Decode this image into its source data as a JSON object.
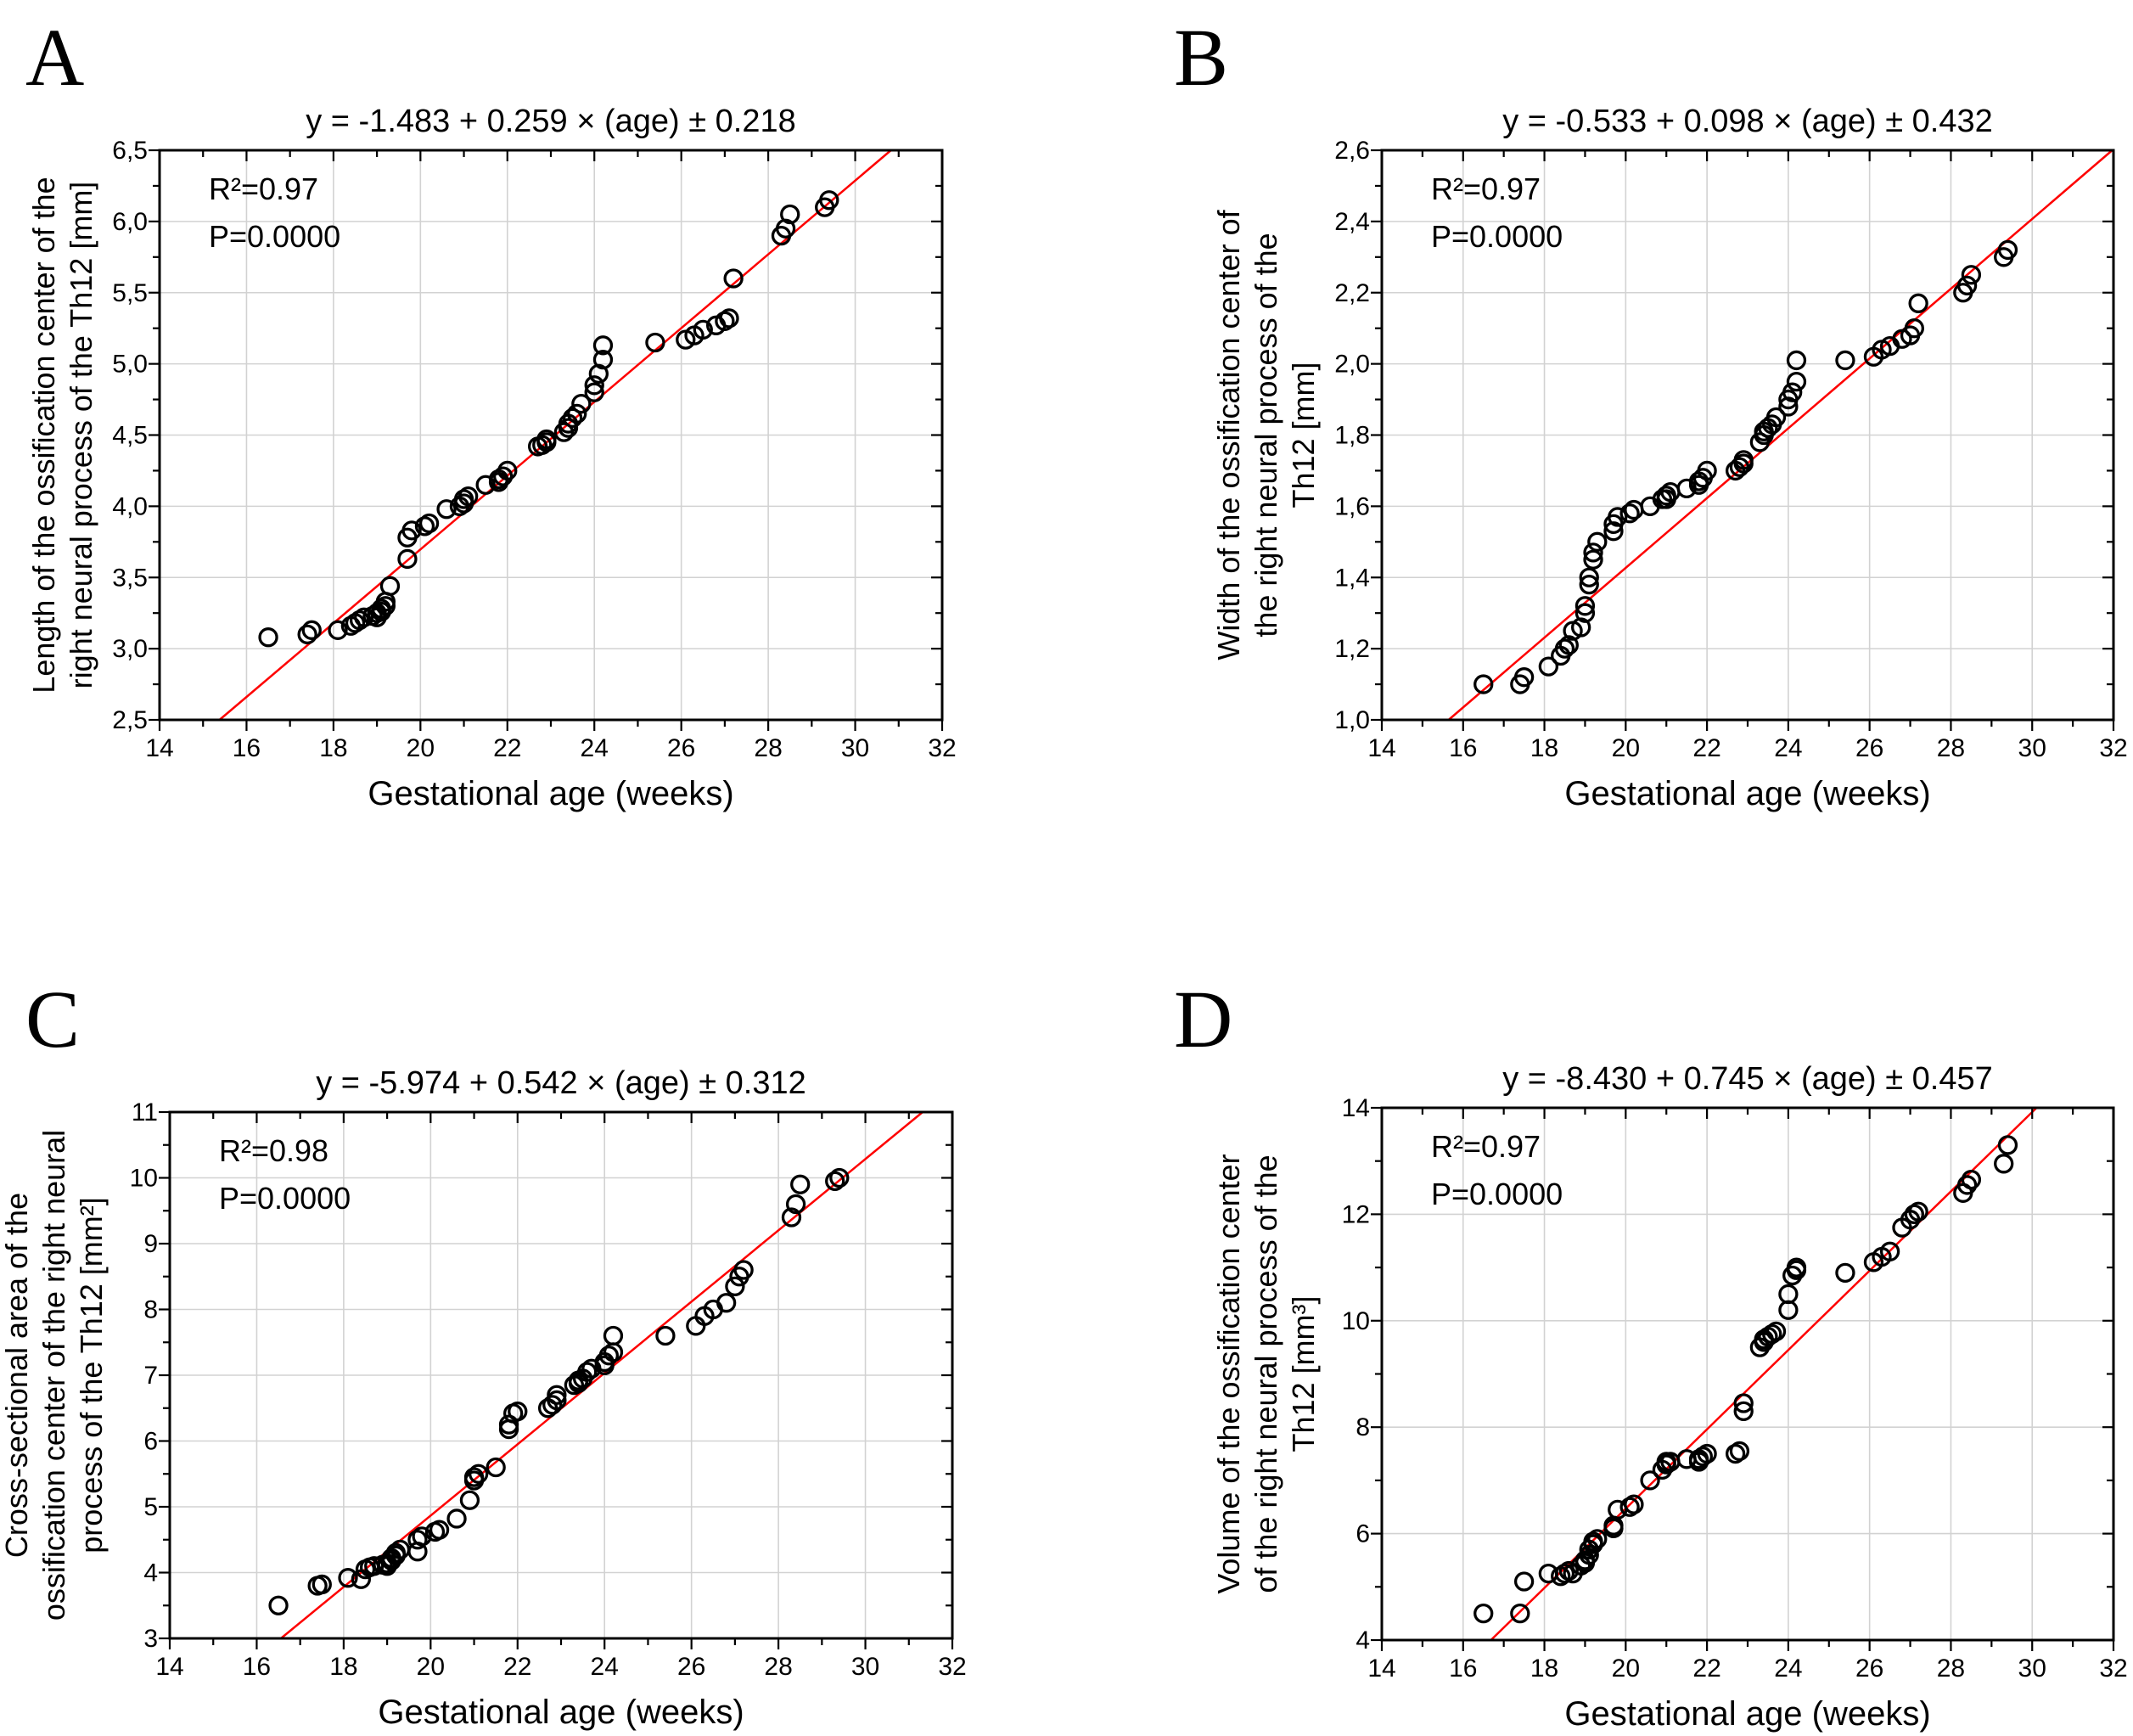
{
  "figure": {
    "background_color": "#ffffff",
    "trend_color": "#fe0000",
    "grid_color": "#d2d2d2",
    "marker_color": "#000000"
  },
  "chart_data": [
    {
      "id": "A",
      "panel_letter": "A",
      "type": "scatter",
      "title": "y = -1.483 + 0.259 × (age) ± 0.218",
      "equation": {
        "intercept": -1.483,
        "slope": 0.259,
        "sd": 0.218
      },
      "stats": {
        "r2": "R²=0.97",
        "p": "P=0.0000"
      },
      "r_squared": 0.97,
      "p_value": 0.0,
      "xlabel": "Gestational age (weeks)",
      "ylabel_lines": [
        "Length of the ossification center of the",
        "right neural process of the Th12 [mm]"
      ],
      "xlim": [
        14,
        32
      ],
      "ylim": [
        2.5,
        6.5
      ],
      "xticks": [
        14,
        16,
        18,
        20,
        22,
        24,
        26,
        28,
        30,
        32
      ],
      "xtick_labels": [
        "14",
        "16",
        "18",
        "20",
        "22",
        "24",
        "26",
        "28",
        "30",
        "32"
      ],
      "yticks": [
        2.5,
        3.0,
        3.5,
        4.0,
        4.5,
        5.0,
        5.5,
        6.0,
        6.5
      ],
      "ytick_labels": [
        "2,5",
        "3,0",
        "3,5",
        "4,0",
        "4,5",
        "5,0",
        "5,5",
        "6,0",
        "6,5"
      ],
      "x_minor_step": 1,
      "y_minor_step": 0.25,
      "grid": true,
      "legend_position": "none",
      "x": [
        16.5,
        17.4,
        17.5,
        18.1,
        18.4,
        18.5,
        18.6,
        18.7,
        18.9,
        19.0,
        19.0,
        19.1,
        19.1,
        19.2,
        19.2,
        19.3,
        19.7,
        19.7,
        19.8,
        20.1,
        20.2,
        20.6,
        20.9,
        21.0,
        21.0,
        21.1,
        21.5,
        21.8,
        21.8,
        21.9,
        22.0,
        22.7,
        22.8,
        22.9,
        22.9,
        23.3,
        23.4,
        23.4,
        23.5,
        23.6,
        23.7,
        24.0,
        24.0,
        24.1,
        24.2,
        24.2,
        25.4,
        26.1,
        26.3,
        26.5,
        26.8,
        27.0,
        27.1,
        27.2,
        28.3,
        28.4,
        28.5,
        29.3,
        29.4
      ],
      "y": [
        3.08,
        3.1,
        3.13,
        3.13,
        3.16,
        3.18,
        3.2,
        3.22,
        3.23,
        3.22,
        3.25,
        3.26,
        3.28,
        3.3,
        3.33,
        3.44,
        3.63,
        3.78,
        3.83,
        3.86,
        3.88,
        3.98,
        4.0,
        4.02,
        4.05,
        4.07,
        4.15,
        4.17,
        4.19,
        4.21,
        4.25,
        4.42,
        4.43,
        4.45,
        4.47,
        4.52,
        4.55,
        4.58,
        4.62,
        4.65,
        4.72,
        4.8,
        4.85,
        4.93,
        5.03,
        5.13,
        5.15,
        5.17,
        5.2,
        5.24,
        5.27,
        5.3,
        5.32,
        5.6,
        5.9,
        5.95,
        6.05,
        6.1,
        6.15
      ]
    },
    {
      "id": "B",
      "panel_letter": "B",
      "type": "scatter",
      "title": "y = -0.533 + 0.098 × (age) ± 0.432",
      "equation": {
        "intercept": -0.533,
        "slope": 0.098,
        "sd": 0.432
      },
      "stats": {
        "r2": "R²=0.97",
        "p": "P=0.0000"
      },
      "r_squared": 0.97,
      "p_value": 0.0,
      "xlabel": "Gestational age (weeks)",
      "ylabel_lines": [
        "Width of the ossification center of",
        "the right neural process of the",
        "Th12 [mm]"
      ],
      "xlim": [
        14,
        32
      ],
      "ylim": [
        1.0,
        2.6
      ],
      "xticks": [
        14,
        16,
        18,
        20,
        22,
        24,
        26,
        28,
        30,
        32
      ],
      "xtick_labels": [
        "14",
        "16",
        "18",
        "20",
        "22",
        "24",
        "26",
        "28",
        "30",
        "32"
      ],
      "yticks": [
        1.0,
        1.2,
        1.4,
        1.6,
        1.8,
        2.0,
        2.2,
        2.4,
        2.6
      ],
      "ytick_labels": [
        "1,0",
        "1,2",
        "1,4",
        "1,6",
        "1,8",
        "2,0",
        "2,2",
        "2,4",
        "2,6"
      ],
      "x_minor_step": 1,
      "y_minor_step": 0.1,
      "grid": true,
      "legend_position": "none",
      "x": [
        16.5,
        17.4,
        17.5,
        18.1,
        18.4,
        18.5,
        18.6,
        18.7,
        18.9,
        19.0,
        19.0,
        19.1,
        19.1,
        19.2,
        19.2,
        19.3,
        19.7,
        19.7,
        19.8,
        20.1,
        20.2,
        20.6,
        20.9,
        21.0,
        21.0,
        21.1,
        21.5,
        21.8,
        21.8,
        21.9,
        22.0,
        22.7,
        22.8,
        22.9,
        22.9,
        23.3,
        23.4,
        23.4,
        23.5,
        23.6,
        23.7,
        24.0,
        24.0,
        24.1,
        24.2,
        24.2,
        25.4,
        26.1,
        26.3,
        26.5,
        26.8,
        27.0,
        27.1,
        27.2,
        28.3,
        28.4,
        28.5,
        29.3,
        29.4
      ],
      "y": [
        1.1,
        1.1,
        1.12,
        1.15,
        1.18,
        1.2,
        1.21,
        1.25,
        1.26,
        1.3,
        1.32,
        1.38,
        1.4,
        1.45,
        1.47,
        1.5,
        1.53,
        1.55,
        1.57,
        1.58,
        1.59,
        1.6,
        1.62,
        1.62,
        1.63,
        1.64,
        1.65,
        1.66,
        1.67,
        1.68,
        1.7,
        1.7,
        1.71,
        1.72,
        1.73,
        1.78,
        1.8,
        1.81,
        1.82,
        1.83,
        1.85,
        1.88,
        1.9,
        1.92,
        1.95,
        2.01,
        2.01,
        2.02,
        2.04,
        2.05,
        2.07,
        2.08,
        2.1,
        2.17,
        2.2,
        2.22,
        2.25,
        2.3,
        2.32
      ]
    },
    {
      "id": "C",
      "panel_letter": "C",
      "type": "scatter",
      "title": "y = -5.974 + 0.542 × (age) ± 0.312",
      "equation": {
        "intercept": -5.974,
        "slope": 0.542,
        "sd": 0.312
      },
      "stats": {
        "r2": "R²=0.98",
        "p": "P=0.0000"
      },
      "r_squared": 0.98,
      "p_value": 0.0,
      "xlabel": "Gestational age (weeks)",
      "ylabel_lines": [
        "Cross-sectional area of the",
        "ossification center of the right neural",
        "process of the Th12 [mm²]"
      ],
      "xlim": [
        14,
        32
      ],
      "ylim": [
        3,
        11
      ],
      "xticks": [
        14,
        16,
        18,
        20,
        22,
        24,
        26,
        28,
        30,
        32
      ],
      "xtick_labels": [
        "14",
        "16",
        "18",
        "20",
        "22",
        "24",
        "26",
        "28",
        "30",
        "32"
      ],
      "yticks": [
        3,
        4,
        5,
        6,
        7,
        8,
        9,
        10,
        11
      ],
      "ytick_labels": [
        "3",
        "4",
        "5",
        "6",
        "7",
        "8",
        "9",
        "10",
        "11"
      ],
      "x_minor_step": 1,
      "y_minor_step": 0.5,
      "grid": true,
      "legend_position": "none",
      "x": [
        16.5,
        17.4,
        17.5,
        18.1,
        18.4,
        18.5,
        18.6,
        18.7,
        18.9,
        19.0,
        19.0,
        19.1,
        19.1,
        19.2,
        19.2,
        19.3,
        19.7,
        19.7,
        19.8,
        20.1,
        20.2,
        20.6,
        20.9,
        21.0,
        21.0,
        21.1,
        21.5,
        21.8,
        21.8,
        21.9,
        22.0,
        22.7,
        22.8,
        22.9,
        22.9,
        23.3,
        23.4,
        23.4,
        23.5,
        23.6,
        23.7,
        24.0,
        24.0,
        24.1,
        24.2,
        24.2,
        25.4,
        26.1,
        26.3,
        26.5,
        26.8,
        27.0,
        27.1,
        27.2,
        28.3,
        28.4,
        28.5,
        29.3,
        29.4
      ],
      "y": [
        3.5,
        3.8,
        3.82,
        3.92,
        3.9,
        4.05,
        4.08,
        4.1,
        4.12,
        4.1,
        4.14,
        4.18,
        4.22,
        4.26,
        4.3,
        4.35,
        4.32,
        4.5,
        4.55,
        4.62,
        4.65,
        4.82,
        5.1,
        5.4,
        5.45,
        5.5,
        5.6,
        6.18,
        6.25,
        6.42,
        6.45,
        6.5,
        6.55,
        6.62,
        6.7,
        6.85,
        6.88,
        6.92,
        6.95,
        7.05,
        7.1,
        7.15,
        7.2,
        7.3,
        7.35,
        7.6,
        7.6,
        7.75,
        7.9,
        8.0,
        8.1,
        8.35,
        8.5,
        8.6,
        9.4,
        9.6,
        9.9,
        9.95,
        10.0
      ]
    },
    {
      "id": "D",
      "panel_letter": "D",
      "type": "scatter",
      "title": "y = -8.430 + 0.745 × (age) ± 0.457",
      "equation": {
        "intercept": -8.43,
        "slope": 0.745,
        "sd": 0.457
      },
      "stats": {
        "r2": "R²=0.97",
        "p": "P=0.0000"
      },
      "r_squared": 0.97,
      "p_value": 0.0,
      "xlabel": "Gestational age (weeks)",
      "ylabel_lines": [
        "Volume of the ossification center",
        "of the right neural process of the",
        "Th12 [mm³]"
      ],
      "xlim": [
        14,
        32
      ],
      "ylim": [
        4,
        14
      ],
      "xticks": [
        14,
        16,
        18,
        20,
        22,
        24,
        26,
        28,
        30,
        32
      ],
      "xtick_labels": [
        "14",
        "16",
        "18",
        "20",
        "22",
        "24",
        "26",
        "28",
        "30",
        "32"
      ],
      "yticks": [
        4,
        6,
        8,
        10,
        12,
        14
      ],
      "ytick_labels": [
        "4",
        "6",
        "8",
        "10",
        "12",
        "14"
      ],
      "x_minor_step": 1,
      "y_minor_step": 1,
      "grid": true,
      "legend_position": "none",
      "x": [
        16.5,
        17.4,
        17.5,
        18.1,
        18.4,
        18.5,
        18.6,
        18.7,
        18.9,
        19.0,
        19.0,
        19.1,
        19.1,
        19.2,
        19.2,
        19.3,
        19.7,
        19.7,
        19.8,
        20.1,
        20.2,
        20.6,
        20.9,
        21.0,
        21.0,
        21.1,
        21.5,
        21.8,
        21.8,
        21.9,
        22.0,
        22.7,
        22.8,
        22.9,
        22.9,
        23.3,
        23.4,
        23.4,
        23.5,
        23.6,
        23.7,
        24.0,
        24.0,
        24.1,
        24.2,
        24.2,
        25.4,
        26.1,
        26.3,
        26.5,
        26.8,
        27.0,
        27.1,
        27.2,
        28.3,
        28.4,
        28.5,
        29.3,
        29.4
      ],
      "y": [
        4.5,
        4.5,
        5.1,
        5.25,
        5.2,
        5.25,
        5.3,
        5.25,
        5.4,
        5.45,
        5.5,
        5.6,
        5.7,
        5.8,
        5.85,
        5.9,
        6.1,
        6.15,
        6.45,
        6.5,
        6.55,
        7.0,
        7.2,
        7.3,
        7.35,
        7.35,
        7.4,
        7.35,
        7.4,
        7.45,
        7.5,
        7.5,
        7.55,
        8.3,
        8.45,
        9.5,
        9.6,
        9.65,
        9.7,
        9.75,
        9.8,
        10.2,
        10.5,
        10.85,
        10.95,
        11.0,
        10.9,
        11.1,
        11.2,
        11.3,
        11.75,
        11.9,
        12.0,
        12.05,
        12.4,
        12.55,
        12.65,
        12.95,
        13.3
      ]
    }
  ]
}
